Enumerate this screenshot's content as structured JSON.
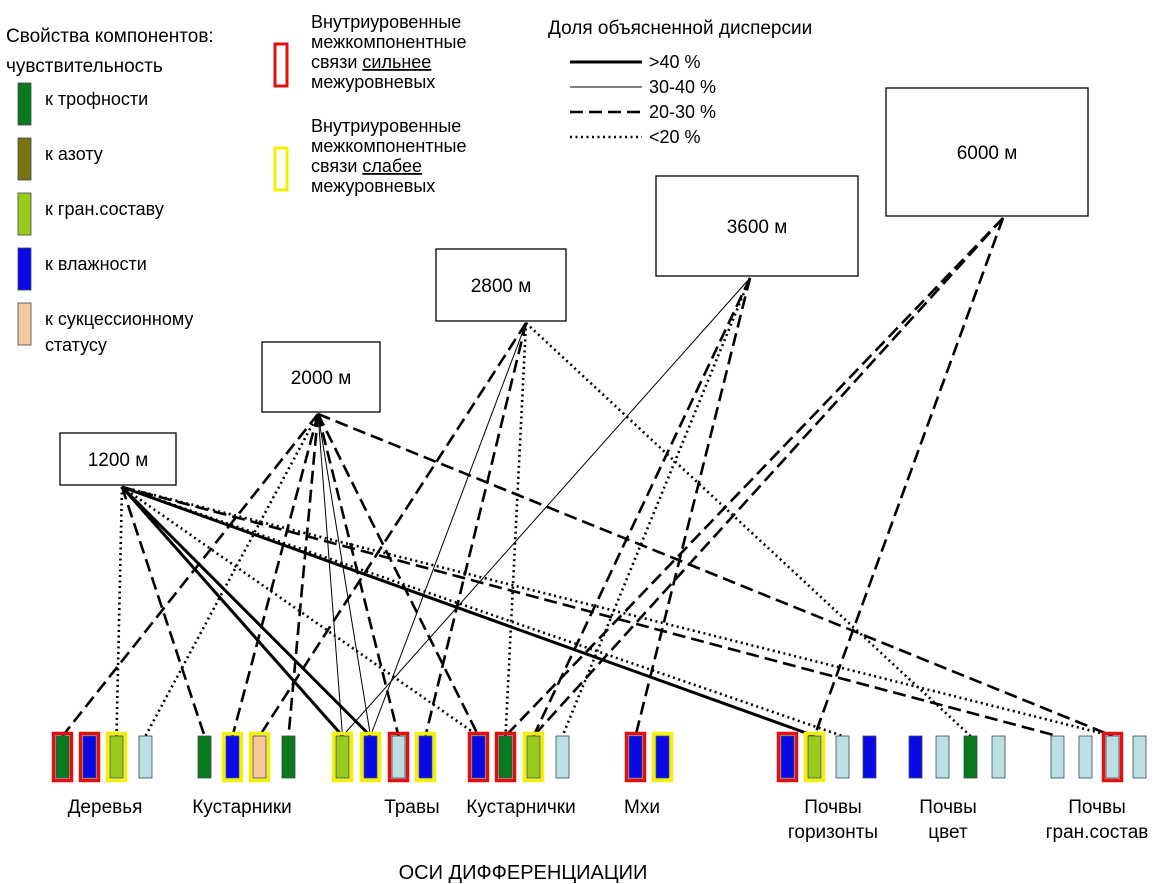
{
  "legend_components": {
    "title_line1": "Свойства компонентов:",
    "title_line2": "чувствительность",
    "items": [
      {
        "id": "trophic",
        "color": "#0a7a1c",
        "lines": [
          "к трофности"
        ]
      },
      {
        "id": "nitrogen",
        "color": "#7a7312",
        "lines": [
          "к азоту"
        ]
      },
      {
        "id": "granulometry",
        "color": "#99cc1a",
        "lines": [
          "к гран.составу"
        ]
      },
      {
        "id": "moisture",
        "color": "#0a0ae6",
        "lines": [
          "к влажности"
        ]
      },
      {
        "id": "succession",
        "color": "#f7c79c",
        "lines": [
          "к сукцессионному",
          "статусу"
        ]
      },
      {
        "id": "none",
        "color": "#bcdfe3",
        "lines": []
      }
    ]
  },
  "legend_links": {
    "stronger": {
      "border": "#e01010",
      "lines": [
        [
          "Внутриуровенные"
        ],
        [
          "межкомпонентные"
        ],
        [
          "связи ",
          "сильнее"
        ],
        [
          "межуровневых"
        ]
      ]
    },
    "weaker": {
      "border": "#f5f000",
      "lines": [
        [
          "Внутриуровенные"
        ],
        [
          "межкомпонентные"
        ],
        [
          "связи ",
          "слабее"
        ],
        [
          "межуровневых"
        ]
      ]
    }
  },
  "legend_variance": {
    "title": "Доля объясненной дисперсии",
    "items": [
      {
        "style": "thick",
        "label": ">40 %"
      },
      {
        "style": "thin",
        "label": "30-40 %"
      },
      {
        "style": "dashed",
        "label": "20-30 %"
      },
      {
        "style": "dotted",
        "label": "<20 %"
      }
    ]
  },
  "levels": [
    {
      "id": "1200",
      "label": "1200 м"
    },
    {
      "id": "2000",
      "label": "2000 м"
    },
    {
      "id": "2800",
      "label": "2800 м"
    },
    {
      "id": "3600",
      "label": "3600 м"
    },
    {
      "id": "6000",
      "label": "6000 м"
    }
  ],
  "axes": [
    {
      "id": "ax0",
      "fill": "trophic",
      "border": "stronger"
    },
    {
      "id": "ax1",
      "fill": "moisture",
      "border": "stronger"
    },
    {
      "id": "ax2",
      "fill": "granulometry",
      "border": "weaker"
    },
    {
      "id": "ax3",
      "fill": "none",
      "border": "none"
    },
    {
      "id": "ax4",
      "fill": "trophic",
      "border": "none"
    },
    {
      "id": "ax5",
      "fill": "moisture",
      "border": "weaker"
    },
    {
      "id": "ax6",
      "fill": "succession",
      "border": "weaker"
    },
    {
      "id": "ax7",
      "fill": "trophic",
      "border": "none"
    },
    {
      "id": "ax8",
      "fill": "granulometry",
      "border": "weaker"
    },
    {
      "id": "ax9",
      "fill": "moisture",
      "border": "weaker"
    },
    {
      "id": "ax10",
      "fill": "none",
      "border": "stronger"
    },
    {
      "id": "ax11",
      "fill": "moisture",
      "border": "weaker"
    },
    {
      "id": "ax12",
      "fill": "moisture",
      "border": "stronger"
    },
    {
      "id": "ax13",
      "fill": "trophic",
      "border": "stronger"
    },
    {
      "id": "ax14",
      "fill": "granulometry",
      "border": "weaker"
    },
    {
      "id": "ax15",
      "fill": "none",
      "border": "none"
    },
    {
      "id": "ax16",
      "fill": "moisture",
      "border": "stronger"
    },
    {
      "id": "ax17",
      "fill": "moisture",
      "border": "weaker"
    },
    {
      "id": "ax18",
      "fill": "moisture",
      "border": "stronger"
    },
    {
      "id": "ax19",
      "fill": "granulometry",
      "border": "weaker"
    },
    {
      "id": "ax20",
      "fill": "none",
      "border": "none"
    },
    {
      "id": "ax21",
      "fill": "moisture",
      "border": "none"
    },
    {
      "id": "ax22",
      "fill": "moisture",
      "border": "none"
    },
    {
      "id": "ax23",
      "fill": "none",
      "border": "none"
    },
    {
      "id": "ax24",
      "fill": "trophic",
      "border": "none"
    },
    {
      "id": "ax25",
      "fill": "none",
      "border": "none"
    },
    {
      "id": "ax26",
      "fill": "none",
      "border": "none"
    },
    {
      "id": "ax27",
      "fill": "none",
      "border": "none"
    },
    {
      "id": "ax28",
      "fill": "none",
      "border": "stronger"
    },
    {
      "id": "ax29",
      "fill": "none",
      "border": "none"
    }
  ],
  "groups": [
    {
      "id": "trees",
      "lines": [
        "Деревья"
      ]
    },
    {
      "id": "shrubs",
      "lines": [
        "Кустарники"
      ]
    },
    {
      "id": "herbs",
      "lines": [
        "Травы"
      ]
    },
    {
      "id": "dwarf_shrubs",
      "lines": [
        "Кустарнички"
      ]
    },
    {
      "id": "mosses",
      "lines": [
        "Мхи"
      ]
    },
    {
      "id": "soil_horizons",
      "lines": [
        "Почвы",
        "горизонты"
      ]
    },
    {
      "id": "soil_color",
      "lines": [
        "Почвы",
        "цвет"
      ]
    },
    {
      "id": "soil_texture",
      "lines": [
        "Почвы",
        "гран.состав"
      ]
    }
  ],
  "axis_title": "ОСИ ДИФФЕРЕНЦИАЦИИ",
  "connections": [
    {
      "from": "1200",
      "to": "ax8",
      "style": "thick"
    },
    {
      "from": "1200",
      "to": "ax9",
      "style": "thick"
    },
    {
      "from": "1200",
      "to": "ax19",
      "style": "thick"
    },
    {
      "from": "1200",
      "to": "ax4",
      "style": "dashed"
    },
    {
      "from": "1200",
      "to": "ax26",
      "style": "dashed"
    },
    {
      "from": "1200",
      "to": "ax2",
      "style": "dotted"
    },
    {
      "from": "1200",
      "to": "ax12",
      "style": "dotted"
    },
    {
      "from": "1200",
      "to": "ax20",
      "style": "dotted"
    },
    {
      "from": "1200",
      "to": "ax28",
      "style": "dotted"
    },
    {
      "from": "2000",
      "to": "ax0",
      "style": "dashed"
    },
    {
      "from": "2000",
      "to": "ax5",
      "style": "dashed"
    },
    {
      "from": "2000",
      "to": "ax7",
      "style": "dashed"
    },
    {
      "from": "2000",
      "to": "ax10",
      "style": "dashed"
    },
    {
      "from": "2000",
      "to": "ax12",
      "style": "dashed"
    },
    {
      "from": "2000",
      "to": "ax28",
      "style": "dashed"
    },
    {
      "from": "2000",
      "to": "ax8",
      "style": "thin"
    },
    {
      "from": "2000",
      "to": "ax9",
      "style": "thin"
    },
    {
      "from": "2000",
      "to": "ax3",
      "style": "dotted"
    },
    {
      "from": "2800",
      "to": "ax6",
      "style": "dashed"
    },
    {
      "from": "2800",
      "to": "ax11",
      "style": "dashed"
    },
    {
      "from": "2800",
      "to": "ax9",
      "style": "thin"
    },
    {
      "from": "2800",
      "to": "ax13",
      "style": "dotted"
    },
    {
      "from": "2800",
      "to": "ax24",
      "style": "dotted"
    },
    {
      "from": "3600",
      "to": "ax14",
      "style": "dashed"
    },
    {
      "from": "3600",
      "to": "ax16",
      "style": "dashed"
    },
    {
      "from": "3600",
      "to": "ax8",
      "style": "thin"
    },
    {
      "from": "3600",
      "to": "ax15",
      "style": "dotted"
    },
    {
      "from": "6000",
      "to": "ax13",
      "style": "dashed"
    },
    {
      "from": "6000",
      "to": "ax14",
      "style": "dashed"
    },
    {
      "from": "6000",
      "to": "ax19",
      "style": "dashed"
    }
  ]
}
